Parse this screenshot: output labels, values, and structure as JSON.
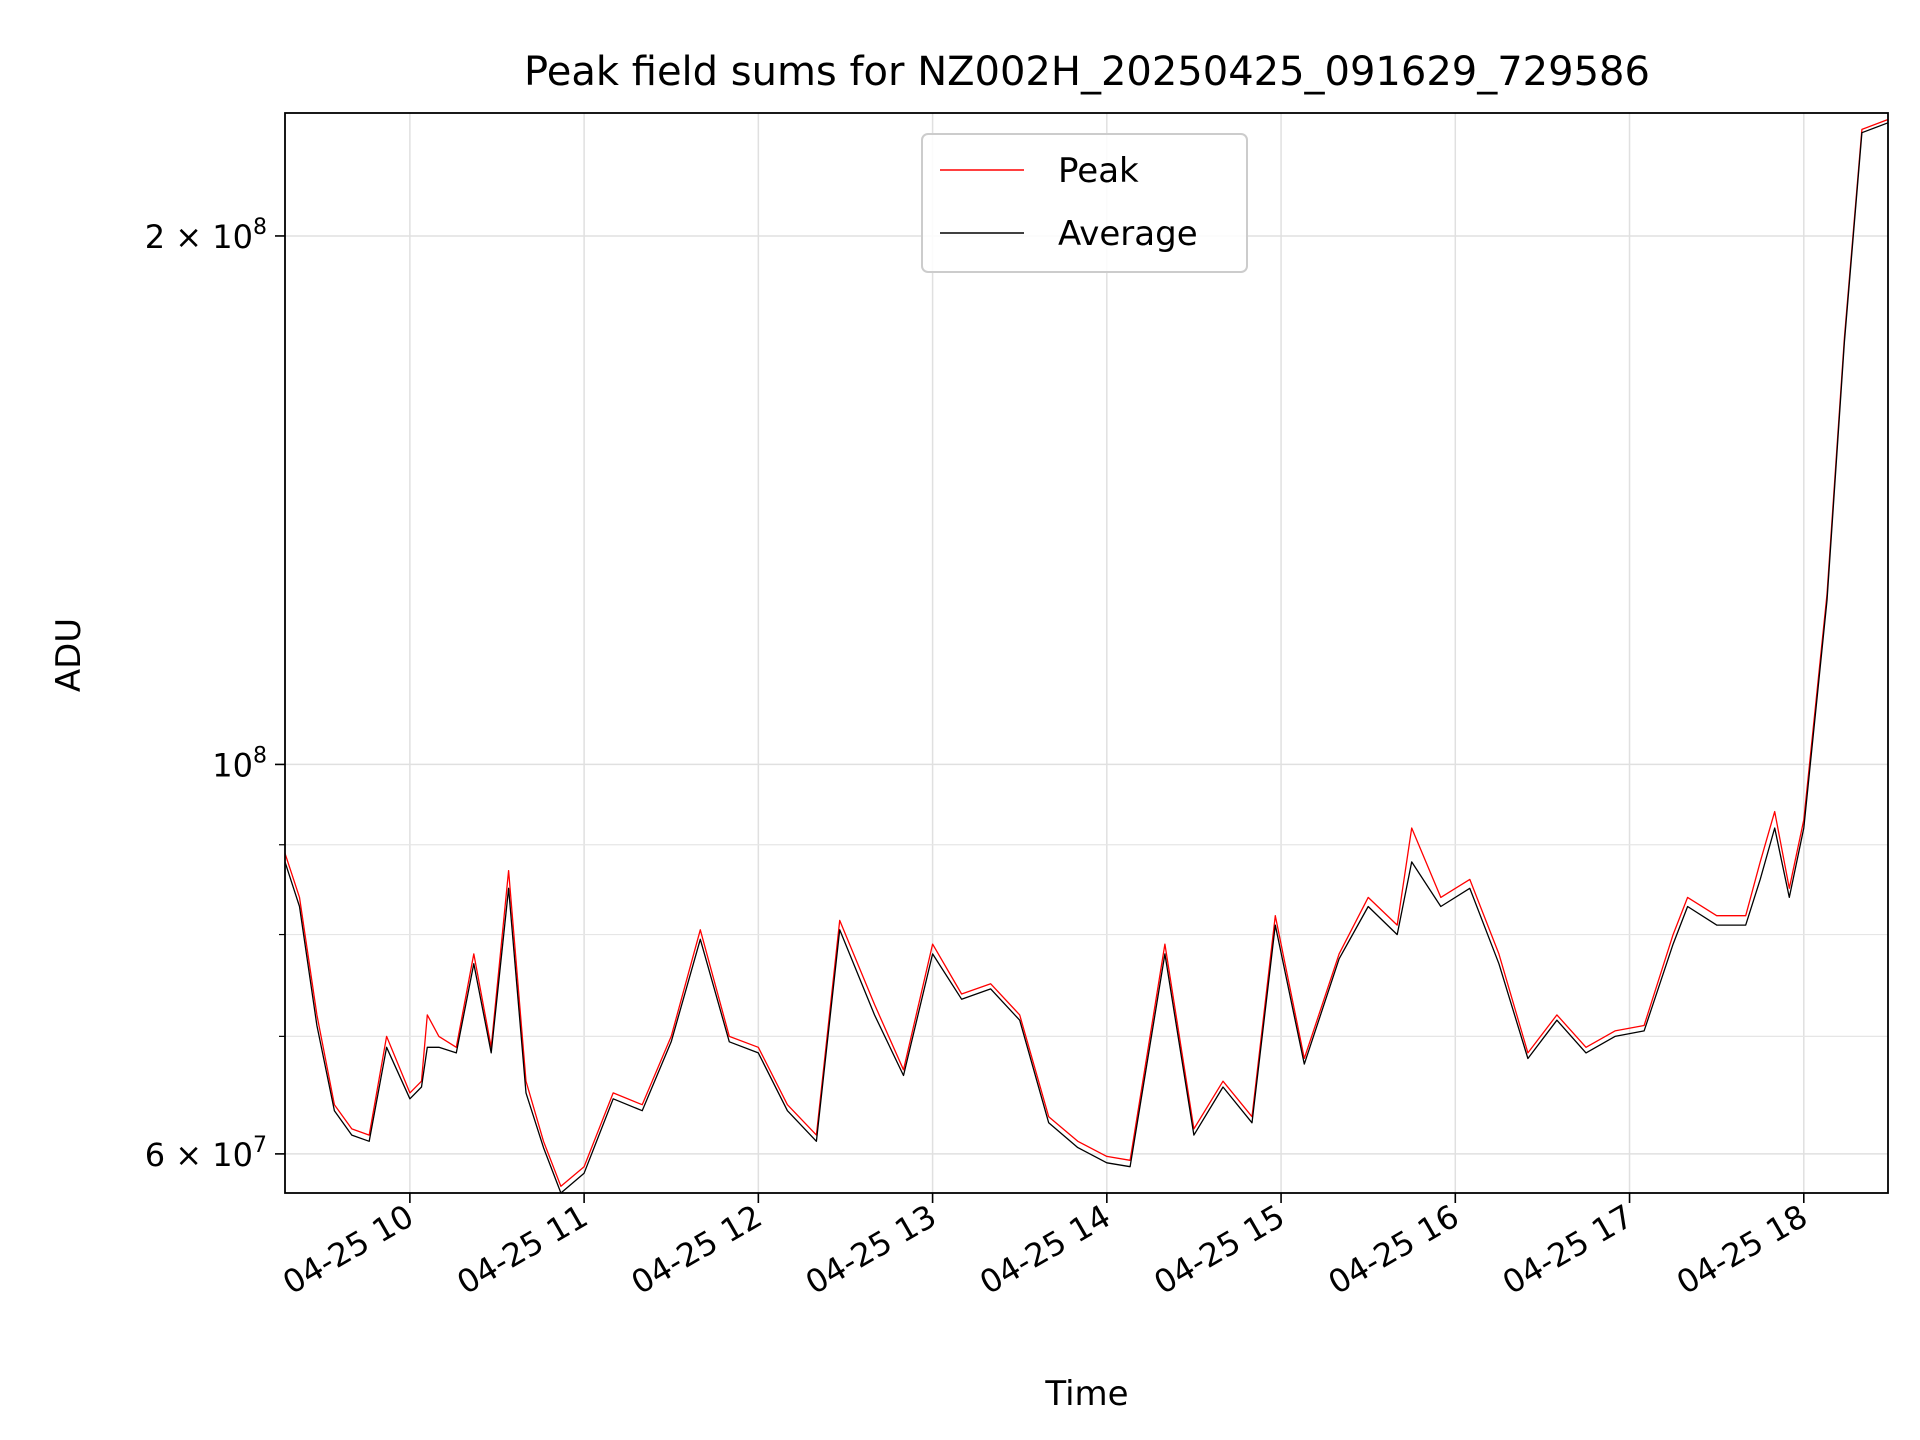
{
  "chart_data": {
    "type": "line",
    "title": "Peak field sums for NZ002H_20250425_091629_729586",
    "xlabel": "Time",
    "ylabel": "ADU",
    "y_scale": "log",
    "xlim": [
      "2025-04-25 09:17",
      "2025-04-25 18:29"
    ],
    "ylim": [
      57000000,
      235000000
    ],
    "grid": true,
    "legend": "upper center",
    "x_ticks": [
      {
        "value": "2025-04-25 10:00",
        "label": "04-25 10"
      },
      {
        "value": "2025-04-25 11:00",
        "label": "04-25 11"
      },
      {
        "value": "2025-04-25 12:00",
        "label": "04-25 12"
      },
      {
        "value": "2025-04-25 13:00",
        "label": "04-25 13"
      },
      {
        "value": "2025-04-25 14:00",
        "label": "04-25 14"
      },
      {
        "value": "2025-04-25 15:00",
        "label": "04-25 15"
      },
      {
        "value": "2025-04-25 16:00",
        "label": "04-25 16"
      },
      {
        "value": "2025-04-25 17:00",
        "label": "04-25 17"
      },
      {
        "value": "2025-04-25 18:00",
        "label": "04-25 18"
      }
    ],
    "y_major_ticks": [
      {
        "value": 60000000,
        "mantissa": "6",
        "base": "10",
        "exp": "7"
      },
      {
        "value": 100000000,
        "mantissa": "",
        "base": "10",
        "exp": "8"
      },
      {
        "value": 200000000,
        "mantissa": "2",
        "base": "10",
        "exp": "8"
      }
    ],
    "y_minor_ticks": [
      70000000,
      80000000,
      90000000,
      300000000
    ],
    "series": [
      {
        "name": "Peak",
        "color": "#ff0000",
        "x": [
          "2025-04-25 09:17",
          "2025-04-25 09:22",
          "2025-04-25 09:28",
          "2025-04-25 09:34",
          "2025-04-25 09:40",
          "2025-04-25 09:46",
          "2025-04-25 09:52",
          "2025-04-25 10:00",
          "2025-04-25 10:04",
          "2025-04-25 10:06",
          "2025-04-25 10:10",
          "2025-04-25 10:16",
          "2025-04-25 10:22",
          "2025-04-25 10:28",
          "2025-04-25 10:34",
          "2025-04-25 10:40",
          "2025-04-25 10:46",
          "2025-04-25 10:52",
          "2025-04-25 11:00",
          "2025-04-25 11:10",
          "2025-04-25 11:20",
          "2025-04-25 11:30",
          "2025-04-25 11:40",
          "2025-04-25 11:50",
          "2025-04-25 12:00",
          "2025-04-25 12:10",
          "2025-04-25 12:20",
          "2025-04-25 12:28",
          "2025-04-25 12:40",
          "2025-04-25 12:50",
          "2025-04-25 13:00",
          "2025-04-25 13:10",
          "2025-04-25 13:20",
          "2025-04-25 13:30",
          "2025-04-25 13:40",
          "2025-04-25 13:50",
          "2025-04-25 14:00",
          "2025-04-25 14:08",
          "2025-04-25 14:20",
          "2025-04-25 14:30",
          "2025-04-25 14:40",
          "2025-04-25 14:50",
          "2025-04-25 14:58",
          "2025-04-25 15:08",
          "2025-04-25 15:20",
          "2025-04-25 15:30",
          "2025-04-25 15:40",
          "2025-04-25 15:45",
          "2025-04-25 15:55",
          "2025-04-25 16:05",
          "2025-04-25 16:15",
          "2025-04-25 16:25",
          "2025-04-25 16:35",
          "2025-04-25 16:45",
          "2025-04-25 16:55",
          "2025-04-25 17:05",
          "2025-04-25 17:15",
          "2025-04-25 17:20",
          "2025-04-25 17:30",
          "2025-04-25 17:40",
          "2025-04-25 17:45",
          "2025-04-25 17:50",
          "2025-04-25 17:55",
          "2025-04-25 18:00",
          "2025-04-25 18:08",
          "2025-04-25 18:14",
          "2025-04-25 18:20",
          "2025-04-25 18:29"
        ],
        "y": [
          89000000,
          84000000,
          72000000,
          64000000,
          62000000,
          61500000,
          70000000,
          65000000,
          66000000,
          72000000,
          70000000,
          69000000,
          78000000,
          69000000,
          87000000,
          66000000,
          61000000,
          57500000,
          59000000,
          65000000,
          64000000,
          70000000,
          80500000,
          70000000,
          69000000,
          64000000,
          61500000,
          81500000,
          73000000,
          67000000,
          79000000,
          74000000,
          75000000,
          72000000,
          63000000,
          61000000,
          59800000,
          59500000,
          79000000,
          62000000,
          66000000,
          63000000,
          82000000,
          68000000,
          78000000,
          84000000,
          81000000,
          92000000,
          84000000,
          86000000,
          78000000,
          68500000,
          72000000,
          69000000,
          70500000,
          71000000,
          80000000,
          84000000,
          82000000,
          82000000,
          88000000,
          94000000,
          85000000,
          93000000,
          125000000,
          175000000,
          230000000,
          233000000
        ]
      },
      {
        "name": "Average",
        "color": "#000000",
        "x": [
          "2025-04-25 09:17",
          "2025-04-25 09:22",
          "2025-04-25 09:28",
          "2025-04-25 09:34",
          "2025-04-25 09:40",
          "2025-04-25 09:46",
          "2025-04-25 09:52",
          "2025-04-25 10:00",
          "2025-04-25 10:04",
          "2025-04-25 10:06",
          "2025-04-25 10:10",
          "2025-04-25 10:16",
          "2025-04-25 10:22",
          "2025-04-25 10:28",
          "2025-04-25 10:34",
          "2025-04-25 10:40",
          "2025-04-25 10:46",
          "2025-04-25 10:52",
          "2025-04-25 11:00",
          "2025-04-25 11:10",
          "2025-04-25 11:20",
          "2025-04-25 11:30",
          "2025-04-25 11:40",
          "2025-04-25 11:50",
          "2025-04-25 12:00",
          "2025-04-25 12:10",
          "2025-04-25 12:20",
          "2025-04-25 12:28",
          "2025-04-25 12:40",
          "2025-04-25 12:50",
          "2025-04-25 13:00",
          "2025-04-25 13:10",
          "2025-04-25 13:20",
          "2025-04-25 13:30",
          "2025-04-25 13:40",
          "2025-04-25 13:50",
          "2025-04-25 14:00",
          "2025-04-25 14:08",
          "2025-04-25 14:20",
          "2025-04-25 14:30",
          "2025-04-25 14:40",
          "2025-04-25 14:50",
          "2025-04-25 14:58",
          "2025-04-25 15:08",
          "2025-04-25 15:20",
          "2025-04-25 15:30",
          "2025-04-25 15:40",
          "2025-04-25 15:45",
          "2025-04-25 15:55",
          "2025-04-25 16:05",
          "2025-04-25 16:15",
          "2025-04-25 16:25",
          "2025-04-25 16:35",
          "2025-04-25 16:45",
          "2025-04-25 16:55",
          "2025-04-25 17:05",
          "2025-04-25 17:15",
          "2025-04-25 17:20",
          "2025-04-25 17:30",
          "2025-04-25 17:40",
          "2025-04-25 17:45",
          "2025-04-25 17:50",
          "2025-04-25 17:55",
          "2025-04-25 18:00",
          "2025-04-25 18:08",
          "2025-04-25 18:14",
          "2025-04-25 18:20",
          "2025-04-25 18:29"
        ],
        "y": [
          88000000,
          83000000,
          71000000,
          63500000,
          61500000,
          61000000,
          69000000,
          64500000,
          65500000,
          69000000,
          69000000,
          68500000,
          77000000,
          68500000,
          85000000,
          65000000,
          60500000,
          57000000,
          58500000,
          64500000,
          63500000,
          69500000,
          79500000,
          69500000,
          68500000,
          63500000,
          61000000,
          80500000,
          72000000,
          66500000,
          78000000,
          73500000,
          74500000,
          71500000,
          62500000,
          60500000,
          59300000,
          59000000,
          78000000,
          61500000,
          65500000,
          62500000,
          81000000,
          67500000,
          77500000,
          83000000,
          80000000,
          88000000,
          83000000,
          85000000,
          77000000,
          68000000,
          71500000,
          68500000,
          70000000,
          70500000,
          79000000,
          83000000,
          81000000,
          81000000,
          86000000,
          92000000,
          84000000,
          92000000,
          124000000,
          174000000,
          229000000,
          232000000
        ]
      }
    ]
  }
}
